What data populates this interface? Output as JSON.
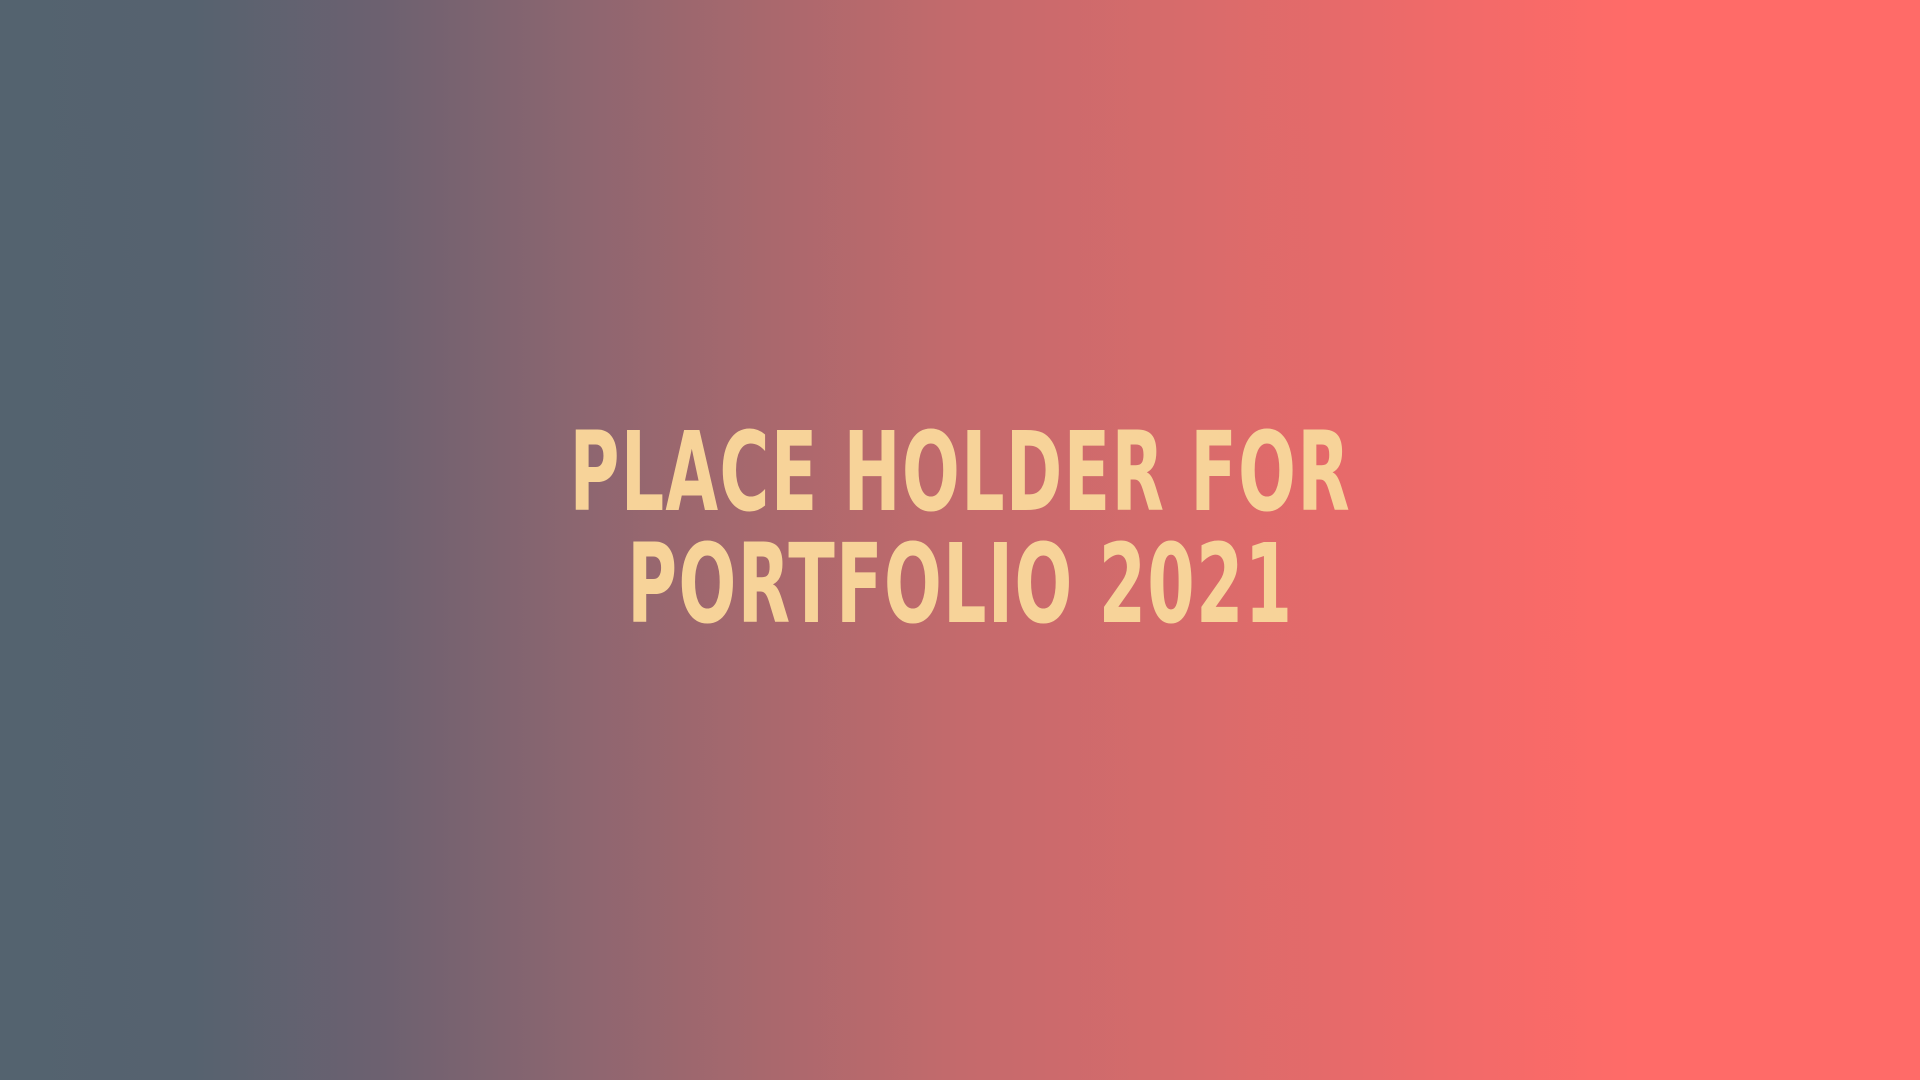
{
  "hero": {
    "line1": "PLACE HOLDER FOR",
    "line2": "PORTFOLIO 2021"
  },
  "colors": {
    "text": "#f7d399",
    "gradient_start": "#54636f",
    "gradient_end": "#ff6b68"
  }
}
